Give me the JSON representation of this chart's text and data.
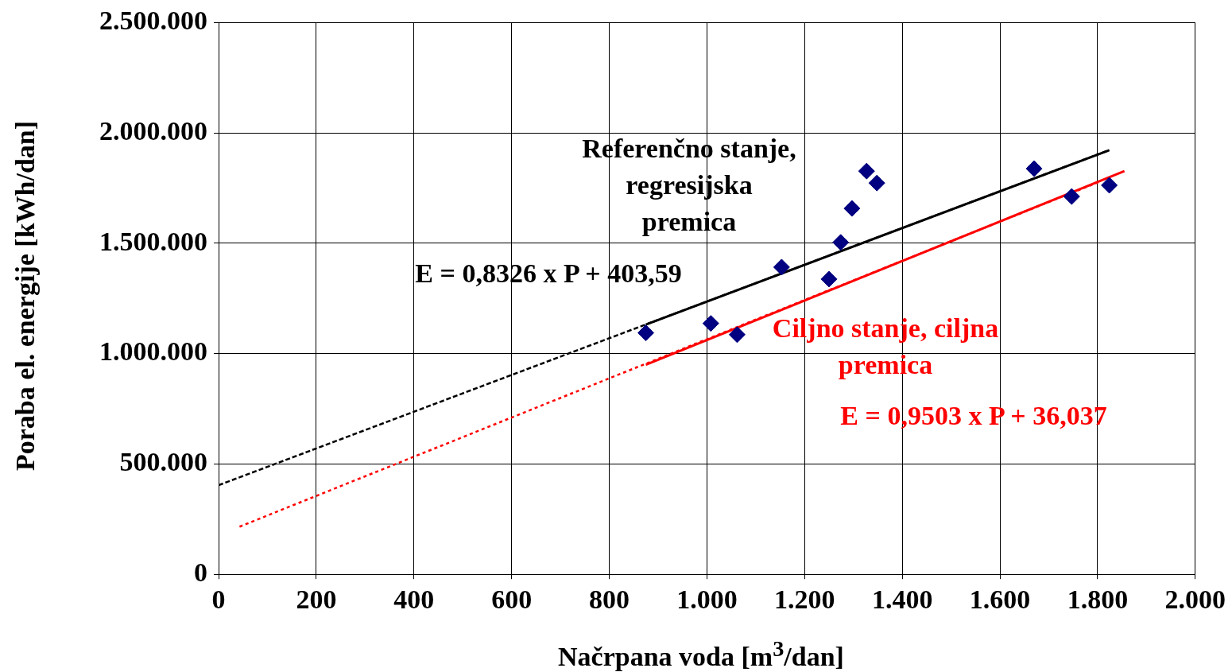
{
  "chart_data": {
    "type": "scatter",
    "xlabel": "Načrpana voda [m$^{3}$/dan]",
    "ylabel": "Poraba el. energije [kWh/dan]",
    "xlim": [
      0,
      2000
    ],
    "ylim": [
      0,
      2500000
    ],
    "xticks": [
      0,
      200,
      400,
      600,
      800,
      {
        "value": 1000,
        "label": "1.000"
      },
      {
        "value": 1200,
        "label": "1.200"
      },
      {
        "value": 1400,
        "label": "1.400"
      },
      {
        "value": 1600,
        "label": "1.600"
      },
      {
        "value": 1800,
        "label": "1.800"
      },
      {
        "value": 2000,
        "label": "2.000"
      }
    ],
    "yticks": [
      0,
      {
        "value": 500000,
        "label": "500.000"
      },
      {
        "value": 1000000,
        "label": "1.000.000"
      },
      {
        "value": 1500000,
        "label": "1.500.000"
      },
      {
        "value": 2000000,
        "label": "2.000.000"
      },
      {
        "value": 2500000,
        "label": "2.500.000"
      }
    ],
    "grid": true,
    "legend": false,
    "marker": "diamond",
    "series": [
      {
        "color": "#000080",
        "x": [
          875,
          1008,
          1062,
          1153,
          1250,
          1274,
          1297,
          1327,
          1348,
          1670,
          1747,
          1824
        ],
        "values": [
          1094000,
          1137000,
          1086000,
          1392000,
          1338000,
          1504000,
          1658000,
          1827000,
          1773000,
          1838000,
          1712000,
          1763000
        ]
      },
      {
        "type": "line",
        "color": "#000000",
        "line_style": "dashed",
        "marker": "none",
        "x": [
          0,
          1824
        ],
        "values": [
          404000,
          1922000
        ]
      },
      {
        "type": "line",
        "color": "#000000",
        "line_style": "solid",
        "marker": "none",
        "x": [
          875,
          1824
        ],
        "values": [
          1132000,
          1922000
        ]
      },
      {
        "type": "line",
        "color": "#ff0000",
        "line_style": "dotted",
        "marker": "none",
        "x": [
          43,
          1806
        ],
        "values": [
          216000,
          1781000
        ]
      },
      {
        "type": "line",
        "color": "#ff0000",
        "line_style": "solid",
        "marker": "none",
        "x": [
          875,
          1855
        ],
        "values": [
          950000,
          1827000
        ]
      }
    ],
    "annotations": [
      "Referenčno stanje,\nregresijska\npremica",
      "E = 0,8326 x P + 403,59",
      "Ciljno stanje, ciljna\npremica",
      "E = 0,9503 x P + 36,037"
    ]
  }
}
